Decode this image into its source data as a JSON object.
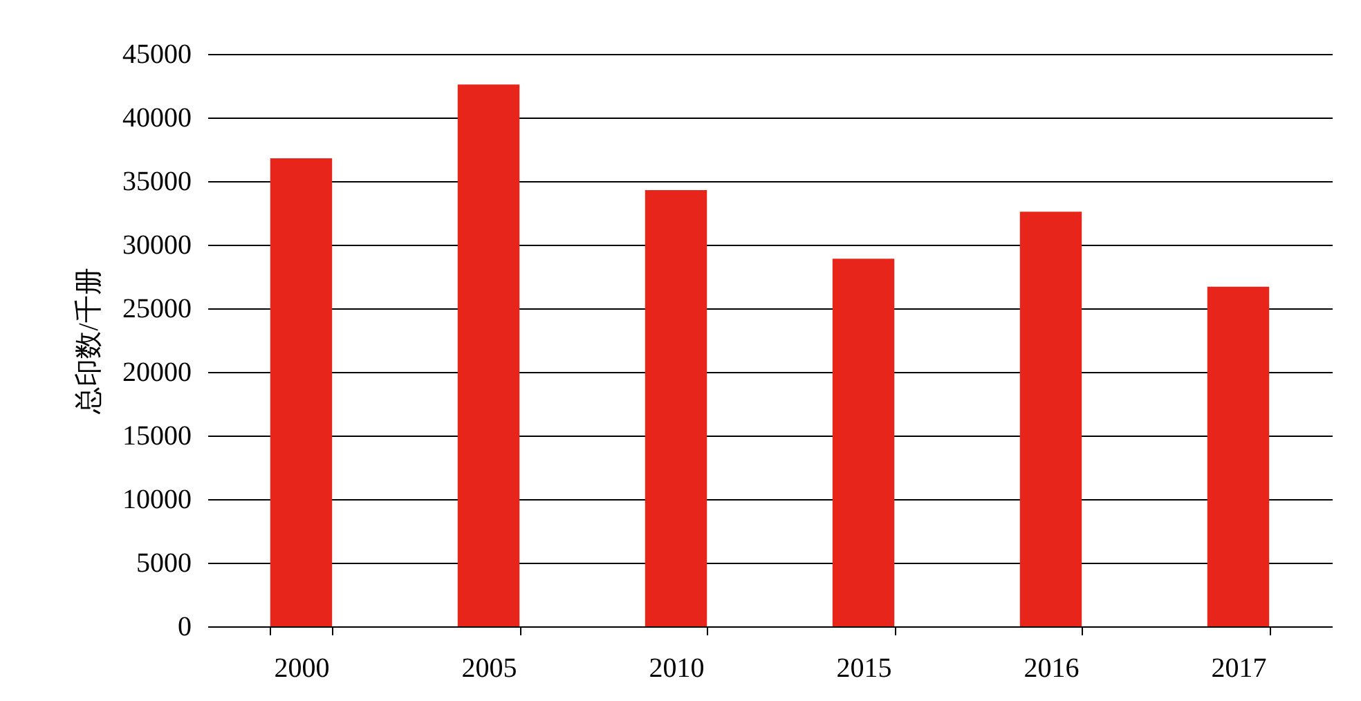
{
  "chart_data": {
    "type": "bar",
    "ylabel": "总印数/千册",
    "categories": [
      "2000",
      "2005",
      "2010",
      "2015",
      "2016",
      "2017"
    ],
    "values": [
      36800,
      42600,
      34300,
      28900,
      32600,
      26700
    ],
    "color": "#e8251a",
    "ylim": [
      0,
      45000
    ],
    "yticks": [
      0,
      5000,
      10000,
      15000,
      20000,
      25000,
      30000,
      35000,
      40000,
      45000
    ],
    "grid": "y"
  }
}
